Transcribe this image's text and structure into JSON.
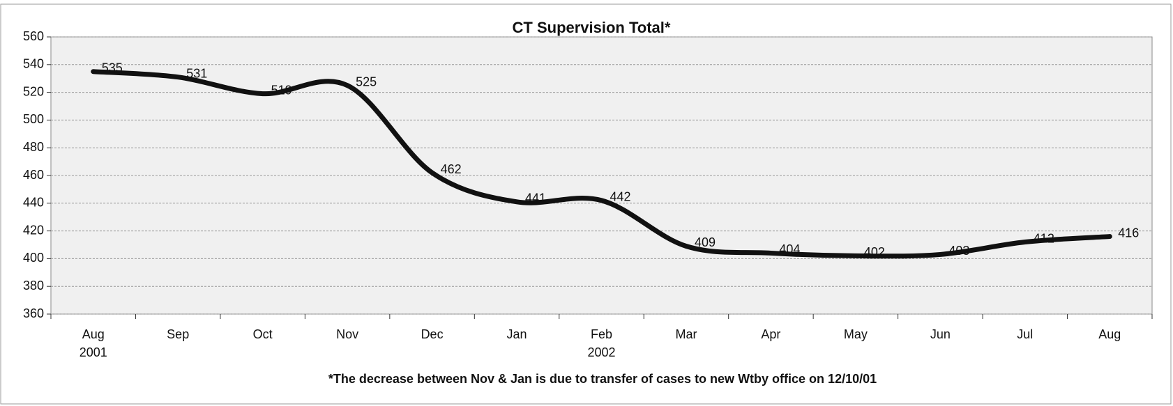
{
  "chart_data": {
    "type": "line",
    "title": "CT Supervision Total*",
    "note": "*The decrease between Nov & Jan is due to transfer of cases to new Wtby office on 12/10/01",
    "categories": [
      "Aug 2001",
      "Sep",
      "Oct",
      "Nov",
      "Dec",
      "Jan",
      "Feb 2002",
      "Mar",
      "Apr",
      "May",
      "Jun",
      "Jul",
      "Aug"
    ],
    "series": [
      {
        "name": "CT Supervision Total",
        "color": "#111111",
        "values": [
          535,
          531,
          519,
          525,
          462,
          441,
          442,
          409,
          404,
          402,
          403,
          412,
          416
        ]
      }
    ],
    "ylim": [
      360,
      560
    ],
    "yticks": [
      360,
      380,
      400,
      420,
      440,
      460,
      480,
      500,
      520,
      540,
      560
    ],
    "grid": true
  }
}
